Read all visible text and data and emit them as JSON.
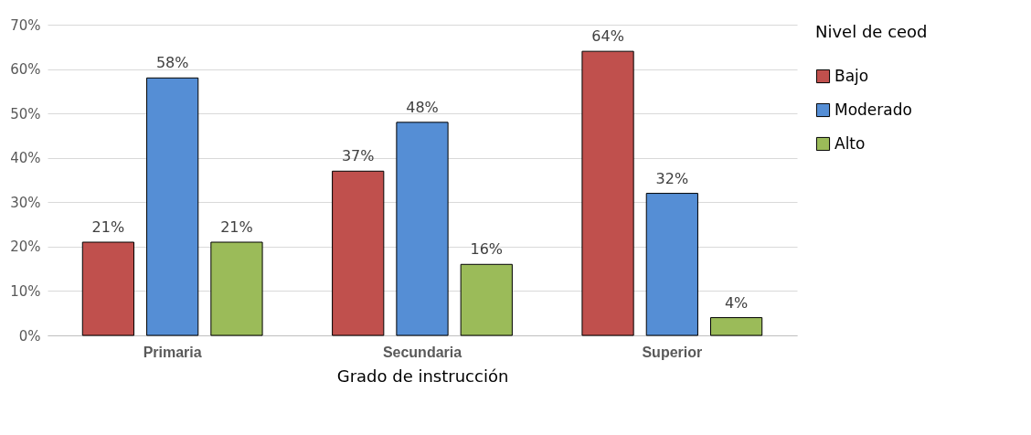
{
  "chart_data": {
    "type": "bar",
    "xlabel": "Grado de instrucción",
    "legend_title": "Nivel de ceod",
    "categories": [
      "Primaria",
      "Secundaria",
      "Superior"
    ],
    "series": [
      {
        "name": "Bajo",
        "color": "#c0504d",
        "values": [
          21,
          37,
          64
        ],
        "value_labels": [
          "21%",
          "37%",
          "64%"
        ]
      },
      {
        "name": "Moderado",
        "color": "#558ed5",
        "values": [
          58,
          48,
          32
        ],
        "value_labels": [
          "58%",
          "48%",
          "32%"
        ]
      },
      {
        "name": "Alto",
        "color": "#9bbb59",
        "values": [
          21,
          16,
          4
        ],
        "value_labels": [
          "21%",
          "16%",
          "4%"
        ]
      }
    ],
    "ylim": [
      0,
      70
    ],
    "yticks": [
      {
        "value": 0,
        "label": "0%"
      },
      {
        "value": 10,
        "label": "10%"
      },
      {
        "value": 20,
        "label": "20%"
      },
      {
        "value": 30,
        "label": "30%"
      },
      {
        "value": 40,
        "label": "40%"
      },
      {
        "value": 50,
        "label": "50%"
      },
      {
        "value": 60,
        "label": "60%"
      },
      {
        "value": 70,
        "label": "70%"
      }
    ],
    "grid": "y",
    "legend": "right"
  }
}
